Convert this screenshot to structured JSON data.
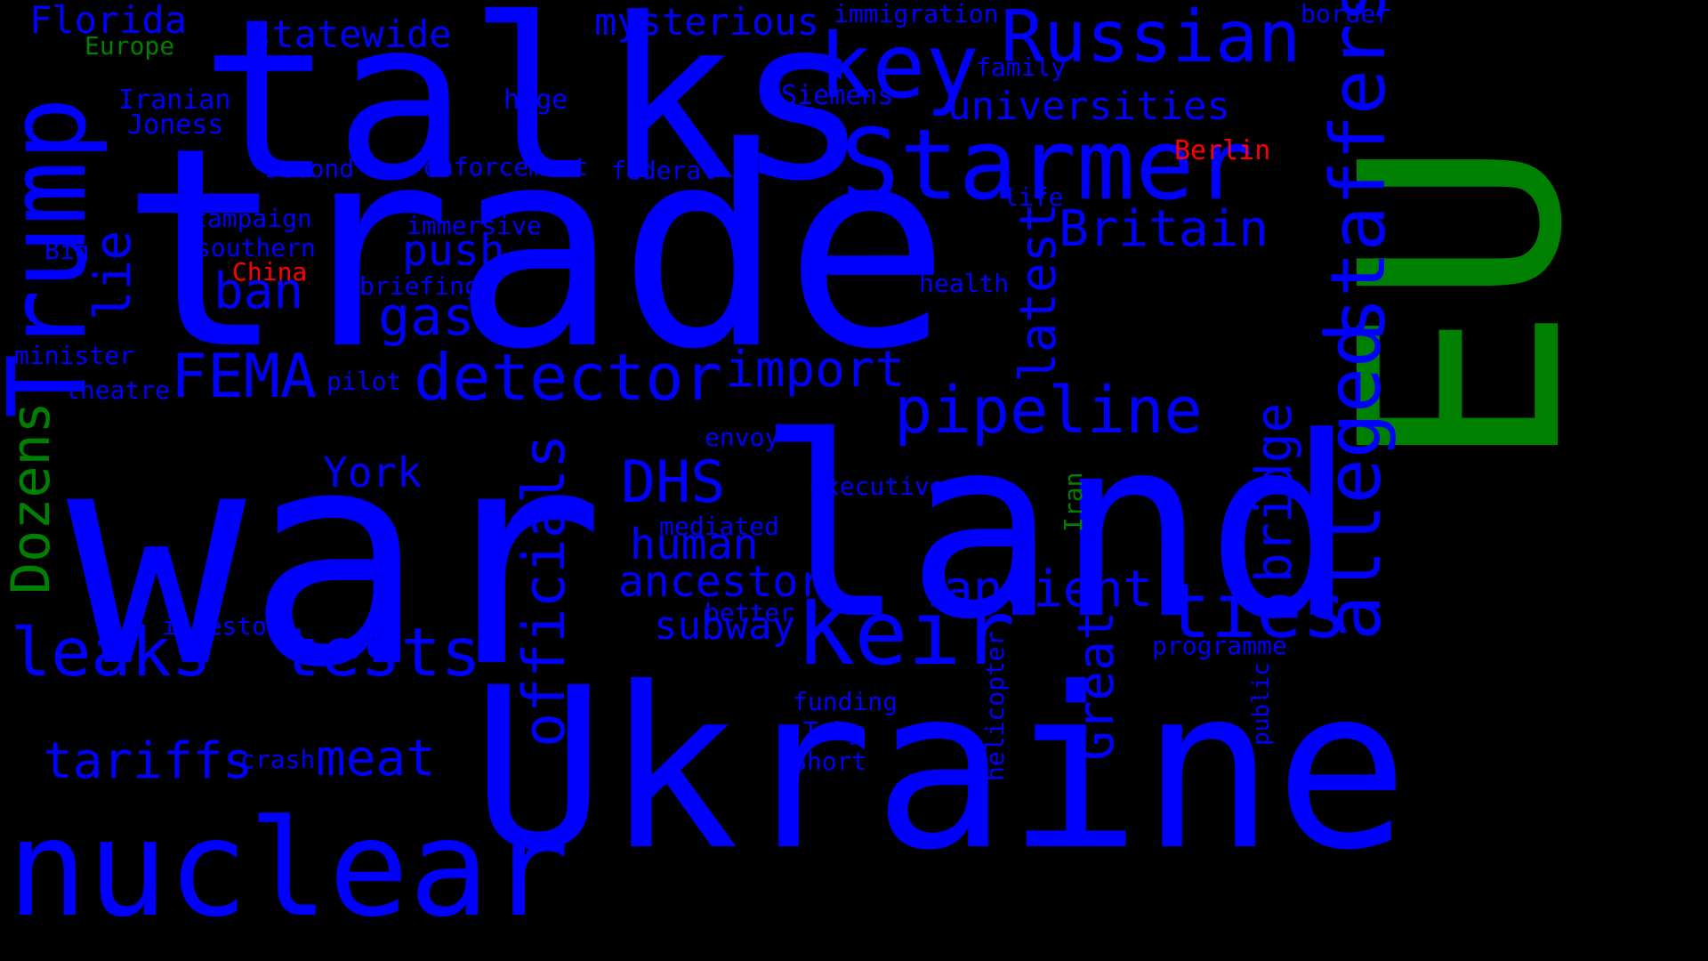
{
  "colors": {
    "background": "#000000",
    "blue": "#0000ff",
    "green": "#008000",
    "red": "#ff0000"
  },
  "words": {
    "war": "war",
    "trade": "trade",
    "talks": "talks",
    "land": "land",
    "ukraine": "Ukraine",
    "eu": "EU",
    "nuclear": "nuclear",
    "trump": "Trump",
    "starmer": "Starmer",
    "key": "key",
    "russian": "Russian",
    "staffers": "staffers",
    "alleged": "alleged",
    "officials": "officials",
    "keir": "Keir",
    "detector": "detector",
    "pipeline": "pipeline",
    "ties": "ties",
    "fema": "FEMA",
    "dhs": "DHS",
    "leaks": "leaks",
    "tests": "tests",
    "ancient": "ancient",
    "import": "import",
    "britain": "Britain",
    "latest": "latest",
    "great": "Great",
    "bridge": "bridge",
    "dozens": "Dozens",
    "gas": "gas",
    "ban": "ban",
    "tariffs": "tariffs",
    "meat": "meat",
    "lie": "lie",
    "ancestor": "ancestor",
    "human": "human",
    "push": "push",
    "subway": "subway",
    "york": "York",
    "mysterious": "mysterious",
    "statewide": "statewide",
    "florida": "Florida",
    "universities": "universities",
    "immigration": "immigration",
    "border": "border",
    "europe": "Europe",
    "iranian": "Iranian",
    "joness": "Joness",
    "huge": "huge",
    "siemens": "Siemens",
    "family": "family",
    "berlin": "Berlin",
    "second": "second",
    "enforcement": "enforcement",
    "federal": "federal",
    "life": "life",
    "campaign": "campaign",
    "immersive": "immersive",
    "southern": "southern",
    "big": "Big",
    "china": "China",
    "briefing": "briefing",
    "health": "health",
    "minister": "minister",
    "theatre": "theatre",
    "pilot": "pilot",
    "envoy": "envoy",
    "executive": "executive",
    "iran": "Iran",
    "mediated": "mediated",
    "investor": "investor",
    "better": "better",
    "programme": "programme",
    "helicopter": "helicopter",
    "public": "public",
    "funding": "funding",
    "toby": "Toby",
    "short": "Short",
    "crash": "crash"
  }
}
